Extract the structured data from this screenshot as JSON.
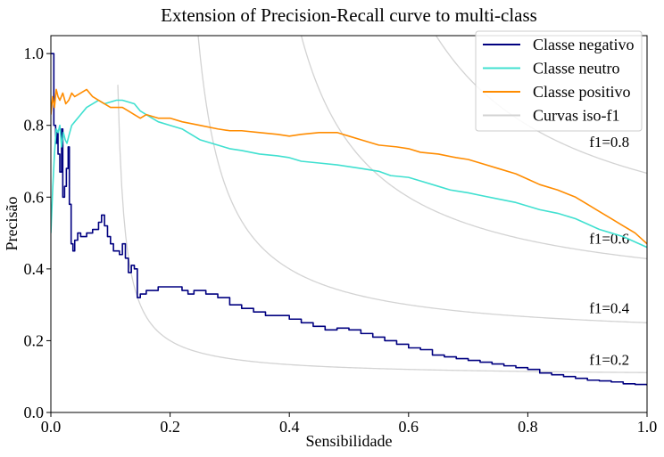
{
  "chart_data": {
    "type": "line",
    "title": "Extension of Precision-Recall curve to multi-class",
    "xlabel": "Sensibilidade",
    "ylabel": "Precisão",
    "xlim": [
      0.0,
      1.0
    ],
    "ylim": [
      0.0,
      1.05
    ],
    "xticks": [
      "0.0",
      "0.2",
      "0.4",
      "0.6",
      "0.8",
      "1.0"
    ],
    "yticks": [
      "0.0",
      "0.2",
      "0.4",
      "0.6",
      "0.8",
      "1.0"
    ],
    "grid": false,
    "legend_position": "top-right",
    "series": [
      {
        "name": "Classe negativo",
        "color": "#000080",
        "step": true,
        "x": [
          0.0,
          0.003,
          0.005,
          0.008,
          0.01,
          0.012,
          0.015,
          0.018,
          0.02,
          0.023,
          0.026,
          0.029,
          0.031,
          0.034,
          0.037,
          0.04,
          0.045,
          0.05,
          0.06,
          0.07,
          0.08,
          0.085,
          0.09,
          0.095,
          0.1,
          0.105,
          0.11,
          0.115,
          0.12,
          0.125,
          0.13,
          0.135,
          0.14,
          0.145,
          0.15,
          0.16,
          0.17,
          0.18,
          0.2,
          0.22,
          0.23,
          0.24,
          0.26,
          0.28,
          0.3,
          0.32,
          0.34,
          0.36,
          0.38,
          0.4,
          0.42,
          0.44,
          0.46,
          0.48,
          0.5,
          0.52,
          0.54,
          0.56,
          0.58,
          0.6,
          0.62,
          0.64,
          0.66,
          0.68,
          0.7,
          0.72,
          0.74,
          0.76,
          0.78,
          0.8,
          0.82,
          0.84,
          0.86,
          0.88,
          0.9,
          0.92,
          0.94,
          0.96,
          0.98,
          1.0
        ],
        "y": [
          1.0,
          1.0,
          0.8,
          0.75,
          0.78,
          0.72,
          0.67,
          0.79,
          0.6,
          0.63,
          0.68,
          0.74,
          0.58,
          0.47,
          0.45,
          0.48,
          0.5,
          0.49,
          0.5,
          0.51,
          0.53,
          0.55,
          0.52,
          0.49,
          0.47,
          0.45,
          0.45,
          0.44,
          0.47,
          0.43,
          0.39,
          0.41,
          0.4,
          0.32,
          0.33,
          0.34,
          0.34,
          0.35,
          0.35,
          0.34,
          0.33,
          0.34,
          0.33,
          0.32,
          0.3,
          0.29,
          0.28,
          0.27,
          0.27,
          0.26,
          0.25,
          0.24,
          0.23,
          0.235,
          0.23,
          0.22,
          0.21,
          0.2,
          0.19,
          0.18,
          0.175,
          0.16,
          0.155,
          0.15,
          0.145,
          0.14,
          0.135,
          0.13,
          0.125,
          0.12,
          0.11,
          0.105,
          0.1,
          0.095,
          0.09,
          0.088,
          0.085,
          0.08,
          0.078,
          0.075
        ]
      },
      {
        "name": "Classe neutro",
        "color": "#40E0D0",
        "step": false,
        "x": [
          0.0,
          0.003,
          0.006,
          0.009,
          0.012,
          0.015,
          0.018,
          0.021,
          0.024,
          0.027,
          0.03,
          0.035,
          0.04,
          0.05,
          0.06,
          0.07,
          0.08,
          0.09,
          0.1,
          0.11,
          0.12,
          0.13,
          0.14,
          0.15,
          0.16,
          0.18,
          0.2,
          0.22,
          0.25,
          0.28,
          0.3,
          0.32,
          0.35,
          0.38,
          0.4,
          0.42,
          0.45,
          0.48,
          0.5,
          0.52,
          0.55,
          0.57,
          0.6,
          0.62,
          0.65,
          0.67,
          0.7,
          0.72,
          0.75,
          0.78,
          0.8,
          0.82,
          0.85,
          0.88,
          0.9,
          0.92,
          0.94,
          0.96,
          0.98,
          1.0
        ],
        "y": [
          0.5,
          0.62,
          0.72,
          0.79,
          0.78,
          0.8,
          0.74,
          0.78,
          0.76,
          0.75,
          0.77,
          0.8,
          0.81,
          0.83,
          0.85,
          0.86,
          0.87,
          0.86,
          0.865,
          0.87,
          0.87,
          0.865,
          0.86,
          0.84,
          0.83,
          0.81,
          0.8,
          0.79,
          0.76,
          0.745,
          0.735,
          0.73,
          0.72,
          0.715,
          0.71,
          0.7,
          0.695,
          0.69,
          0.685,
          0.68,
          0.672,
          0.66,
          0.655,
          0.645,
          0.63,
          0.62,
          0.612,
          0.605,
          0.595,
          0.585,
          0.575,
          0.565,
          0.555,
          0.54,
          0.525,
          0.51,
          0.5,
          0.49,
          0.475,
          0.46
        ]
      },
      {
        "name": "Classe positivo",
        "color": "#FF8C00",
        "step": false,
        "x": [
          0.0,
          0.003,
          0.006,
          0.009,
          0.012,
          0.015,
          0.02,
          0.025,
          0.03,
          0.035,
          0.04,
          0.05,
          0.06,
          0.07,
          0.08,
          0.09,
          0.1,
          0.11,
          0.12,
          0.13,
          0.14,
          0.15,
          0.16,
          0.18,
          0.2,
          0.22,
          0.25,
          0.28,
          0.3,
          0.32,
          0.35,
          0.38,
          0.4,
          0.42,
          0.45,
          0.48,
          0.5,
          0.52,
          0.55,
          0.58,
          0.6,
          0.62,
          0.65,
          0.68,
          0.7,
          0.72,
          0.75,
          0.78,
          0.8,
          0.82,
          0.85,
          0.88,
          0.9,
          0.92,
          0.94,
          0.96,
          0.98,
          1.0
        ],
        "y": [
          0.83,
          0.88,
          0.85,
          0.9,
          0.88,
          0.87,
          0.89,
          0.86,
          0.87,
          0.89,
          0.88,
          0.89,
          0.9,
          0.88,
          0.87,
          0.86,
          0.85,
          0.85,
          0.85,
          0.84,
          0.83,
          0.82,
          0.83,
          0.82,
          0.82,
          0.81,
          0.8,
          0.79,
          0.785,
          0.785,
          0.78,
          0.775,
          0.77,
          0.775,
          0.78,
          0.78,
          0.77,
          0.76,
          0.745,
          0.74,
          0.735,
          0.725,
          0.72,
          0.71,
          0.705,
          0.695,
          0.68,
          0.665,
          0.65,
          0.635,
          0.62,
          0.6,
          0.58,
          0.56,
          0.54,
          0.52,
          0.5,
          0.47
        ]
      }
    ],
    "iso_f1": {
      "name": "Curvas iso-f1",
      "color": "#d3d3d3",
      "values": [
        0.2,
        0.4,
        0.6,
        0.8
      ],
      "labels": [
        "f1=0.2",
        "f1=0.4",
        "f1=0.6",
        "f1=0.8"
      ]
    }
  }
}
